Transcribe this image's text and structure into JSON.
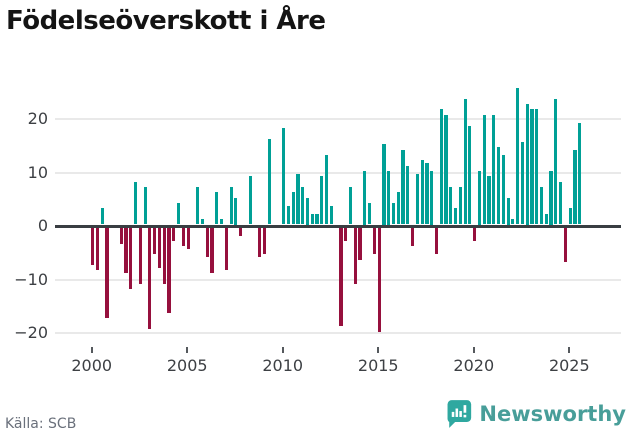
{
  "title": "Födelseöverskott i Åre",
  "source": "Källa: SCB",
  "branding": {
    "name": "Newsworthy",
    "icon": "newsworthy-bubble-chart-icon"
  },
  "colors": {
    "positive": "#00a096",
    "negative": "#96103d",
    "zero_axis": "#393e42",
    "grid": "#e9e9e9",
    "brand_text": "#489e99",
    "brand_icon": "#2fa8a0",
    "tick_text": "#3d4044"
  },
  "chart_data": {
    "type": "bar",
    "title": "Födelseöverskott i Åre",
    "xlabel": "",
    "ylabel": "",
    "period": "quarterly",
    "start": "2000Q1",
    "end": "2025Q3",
    "grid": true,
    "ylim": [
      -21,
      26
    ],
    "yticks": [
      20,
      10,
      0,
      -10,
      -20
    ],
    "xticks": [
      2000,
      2005,
      2010,
      2015,
      2020,
      2025
    ],
    "values": [
      -7,
      -8,
      3,
      -17,
      0,
      0,
      -3,
      -8.5,
      -11.5,
      8,
      -10.5,
      7,
      -19,
      -5,
      -7.5,
      -10.5,
      -16,
      -2.5,
      4,
      -3.5,
      -4,
      0,
      7,
      1,
      -5.5,
      -8.5,
      6,
      1,
      -8,
      7,
      5,
      -1.5,
      0,
      9,
      0,
      -5.5,
      -5,
      16,
      0,
      0,
      18,
      3.5,
      6,
      9.5,
      7,
      5,
      2,
      2,
      9,
      13,
      3.5,
      0,
      -18.5,
      -2.5,
      7,
      -10.5,
      -6,
      10,
      4,
      -5,
      -19.5,
      15,
      10,
      4,
      6,
      14,
      11,
      -3.5,
      9.5,
      12,
      11.5,
      10,
      -5,
      21.5,
      20.5,
      7,
      3,
      7,
      23.5,
      18.5,
      -2.5,
      10,
      20.5,
      9,
      20.5,
      14.5,
      13,
      5,
      1,
      25.5,
      15.5,
      22.5,
      21.5,
      21.5,
      7,
      2,
      10,
      23.5,
      8,
      -6.5,
      3,
      14,
      19
    ]
  }
}
